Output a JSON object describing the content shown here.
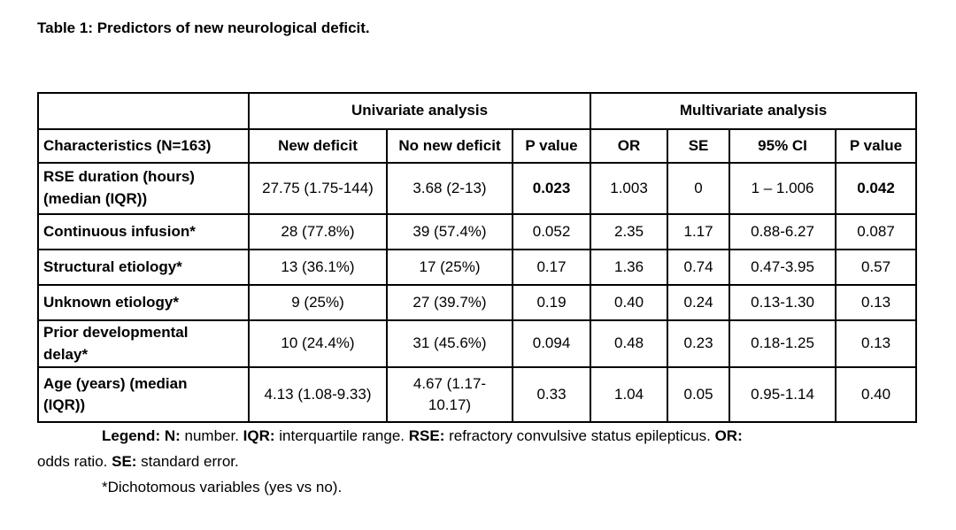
{
  "page": {
    "background": "#ffffff",
    "text_color": "#000000"
  },
  "title": "Table 1: Predictors of new neurological deficit.",
  "table": {
    "group_headers": [
      {
        "label": "",
        "colspan": 1
      },
      {
        "label": "Univariate analysis",
        "colspan": 3
      },
      {
        "label": "Multivariate analysis",
        "colspan": 4
      }
    ],
    "columns": [
      "Characteristics (N=163)",
      "New deficit",
      "No new deficit",
      "P value",
      "OR",
      "SE",
      "95% CI",
      "P value"
    ],
    "rows": [
      {
        "label": "RSE duration (hours) (median (IQR))",
        "cells": [
          "27.75 (1.75-144)",
          "3.68 (2-13)",
          "0.023",
          "1.003",
          "0",
          "1 – 1.006",
          "0.042"
        ],
        "bold": [
          2,
          6
        ]
      },
      {
        "label": "Continuous infusion*",
        "cells": [
          "28 (77.8%)",
          "39 (57.4%)",
          "0.052",
          "2.35",
          "1.17",
          "0.88-6.27",
          "0.087"
        ],
        "bold": []
      },
      {
        "label": "Structural etiology*",
        "cells": [
          "13 (36.1%)",
          "17 (25%)",
          "0.17",
          "1.36",
          "0.74",
          "0.47-3.95",
          "0.57"
        ],
        "bold": []
      },
      {
        "label": "Unknown etiology*",
        "cells": [
          "9 (25%)",
          "27 (39.7%)",
          "0.19",
          "0.40",
          "0.24",
          "0.13-1.30",
          "0.13"
        ],
        "bold": []
      },
      {
        "label": "Prior developmental delay*",
        "cells": [
          "10 (24.4%)",
          "31 (45.6%)",
          "0.094",
          "0.48",
          "0.23",
          "0.18-1.25",
          "0.13"
        ],
        "bold": []
      },
      {
        "label": "Age (years) (median (IQR))",
        "cells": [
          "4.13 (1.08-9.33)",
          "4.67 (1.17-10.17)",
          "0.33",
          "1.04",
          "0.05",
          "0.95-1.14",
          "0.40"
        ],
        "bold": []
      }
    ]
  },
  "legend": {
    "lines": [
      {
        "indent": true,
        "segments": [
          {
            "text": "Legend: N:",
            "bold": true
          },
          {
            "text": " number. ",
            "bold": false
          },
          {
            "text": "IQR:",
            "bold": true
          },
          {
            "text": " interquartile range. ",
            "bold": false
          },
          {
            "text": "RSE:",
            "bold": true
          },
          {
            "text": " refractory convulsive status epilepticus. ",
            "bold": false
          },
          {
            "text": "OR:",
            "bold": true
          }
        ]
      },
      {
        "indent": false,
        "segments": [
          {
            "text": "odds ratio. ",
            "bold": false
          },
          {
            "text": "SE:",
            "bold": true
          },
          {
            "text": " standard error.",
            "bold": false
          }
        ]
      },
      {
        "indent": true,
        "segments": [
          {
            "text": "*Dichotomous variables (yes vs no).",
            "bold": false
          }
        ]
      }
    ]
  }
}
